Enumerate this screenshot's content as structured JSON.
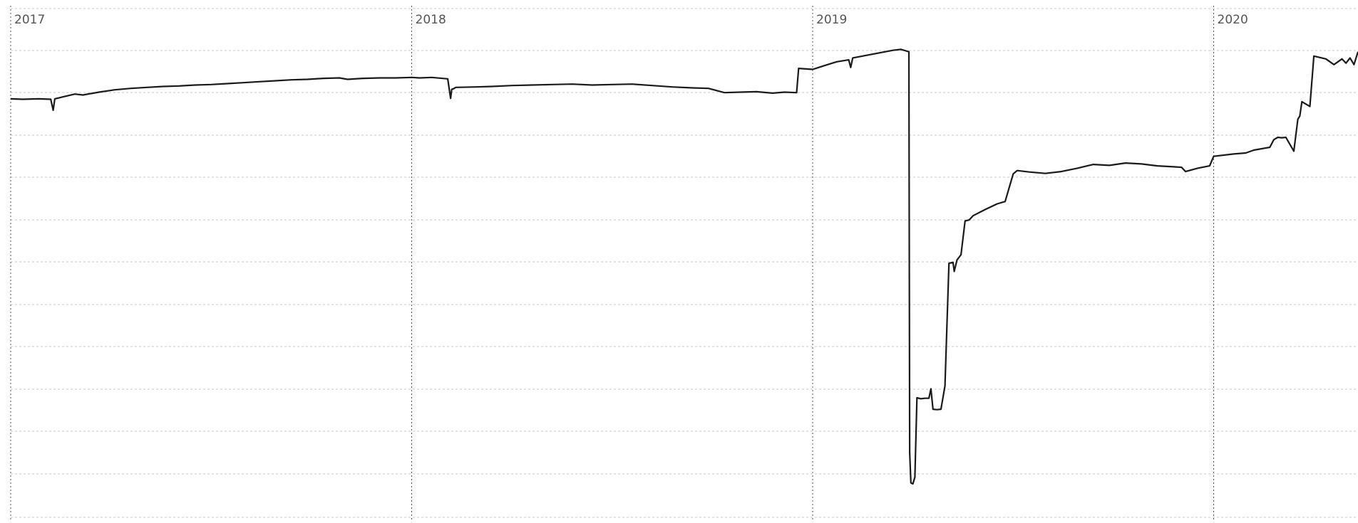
{
  "chart_data": {
    "type": "line",
    "title": "",
    "xlabel": "",
    "ylabel": "",
    "x_ticks": [
      "2017",
      "2018",
      "2019",
      "2020"
    ],
    "xlim": [
      2017.0,
      2020.36
    ],
    "ylim": [
      0,
      100
    ],
    "grid": {
      "horizontal": true,
      "vertical": true
    },
    "legend": "none",
    "colors": {
      "line": "#1a1a1a",
      "grid": "#c8c8c8",
      "year_line": "#555555",
      "label": "#555555"
    },
    "series": [
      {
        "x": [
          2017.0,
          2017.03,
          2017.07,
          2017.1,
          2017.106,
          2017.11,
          2017.13,
          2017.16,
          2017.18,
          2017.22,
          2017.26,
          2017.3,
          2017.34,
          2017.38,
          2017.42,
          2017.46,
          2017.5,
          2017.54,
          2017.58,
          2017.62,
          2017.66,
          2017.7,
          2017.74,
          2017.78,
          2017.82,
          2017.84,
          2017.88,
          2017.92,
          2017.96,
          2018.0,
          2018.02,
          2018.05,
          2018.09,
          2018.097,
          2018.1,
          2018.104,
          2018.11,
          2018.16,
          2018.2,
          2018.25,
          2018.3,
          2018.35,
          2018.4,
          2018.45,
          2018.5,
          2018.55,
          2018.6,
          2018.65,
          2018.7,
          2018.74,
          2018.78,
          2018.82,
          2018.86,
          2018.9,
          2018.93,
          2018.96,
          2018.965,
          2019.0,
          2019.03,
          2019.06,
          2019.09,
          2019.095,
          2019.1,
          2019.15,
          2019.2,
          2019.22,
          2019.24,
          2019.242,
          2019.245,
          2019.25,
          2019.255,
          2019.26,
          2019.27,
          2019.28,
          2019.29,
          2019.295,
          2019.3,
          2019.31,
          2019.32,
          2019.33,
          2019.34,
          2019.35,
          2019.353,
          2019.36,
          2019.37,
          2019.38,
          2019.39,
          2019.4,
          2019.43,
          2019.46,
          2019.48,
          2019.5,
          2019.51,
          2019.54,
          2019.58,
          2019.62,
          2019.66,
          2019.7,
          2019.74,
          2019.78,
          2019.82,
          2019.86,
          2019.9,
          2019.92,
          2019.93,
          2019.96,
          2019.99,
          2020.0,
          2020.05,
          2020.08,
          2020.1,
          2020.14,
          2020.15,
          2020.16,
          2020.17,
          2020.18,
          2020.2,
          2020.21,
          2020.215,
          2020.22,
          2020.24,
          2020.25,
          2020.28,
          2020.3,
          2020.32,
          2020.33,
          2020.34,
          2020.35,
          2020.36
        ],
        "values": [
          84.6,
          84.5,
          84.6,
          84.5,
          82.2,
          84.6,
          85.0,
          85.6,
          85.4,
          86.0,
          86.5,
          86.8,
          87.0,
          87.2,
          87.3,
          87.5,
          87.6,
          87.8,
          88.0,
          88.2,
          88.4,
          88.6,
          88.7,
          88.9,
          89.0,
          88.7,
          88.9,
          89.0,
          89.0,
          89.1,
          89.0,
          89.1,
          88.8,
          84.7,
          86.6,
          86.7,
          87.0,
          87.1,
          87.2,
          87.4,
          87.5,
          87.6,
          87.7,
          87.5,
          87.6,
          87.7,
          87.4,
          87.1,
          86.9,
          86.8,
          85.9,
          86.0,
          86.1,
          85.8,
          86.0,
          85.9,
          91.0,
          90.8,
          91.6,
          92.4,
          92.8,
          91.2,
          93.2,
          94.0,
          94.8,
          95.0,
          94.5,
          10.2,
          3.8,
          3.6,
          5.0,
          21.7,
          21.5,
          21.6,
          21.6,
          23.6,
          19.3,
          19.2,
          19.3,
          24.2,
          50.0,
          50.2,
          48.3,
          50.7,
          51.8,
          58.9,
          59.1,
          60.0,
          61.3,
          62.5,
          63.0,
          68.8,
          69.5,
          69.2,
          68.9,
          69.3,
          70.0,
          70.8,
          70.6,
          71.1,
          70.9,
          70.5,
          70.3,
          70.2,
          69.3,
          70.0,
          70.5,
          72.5,
          73.0,
          73.2,
          73.8,
          74.4,
          76.0,
          76.5,
          76.4,
          76.5,
          73.6,
          80.3,
          81.0,
          84.0,
          83.0,
          93.6,
          93.0,
          91.8,
          93.0,
          92.1,
          93.2,
          91.8,
          94.5
        ],
        "line_color": "#1a1a1a"
      }
    ]
  }
}
